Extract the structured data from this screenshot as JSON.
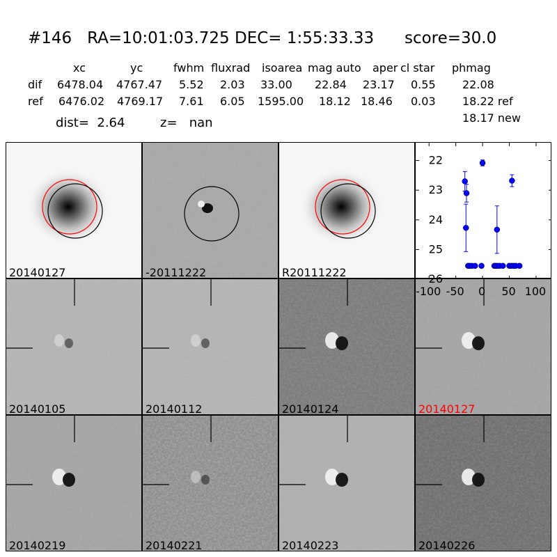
{
  "header": {
    "title": "#146   RA=10:01:03.725 DEC= 1:55:33.33      score=30.0",
    "columns": [
      "xc",
      "yc",
      "fwhm",
      "fluxrad",
      "isoarea",
      "mag auto",
      "aper",
      "cl star",
      "phmag"
    ],
    "rows": [
      {
        "label": "dif",
        "values": [
          "6478.04",
          "4767.47",
          "5.52",
          "2.03",
          "33.00",
          "22.84",
          "23.17",
          "0.55",
          "22.08"
        ]
      },
      {
        "label": "ref",
        "values": [
          "6476.02",
          "4769.17",
          "7.61",
          "6.05",
          "1595.00",
          "18.12",
          "18.46",
          "0.03",
          "18.22 ref"
        ]
      }
    ],
    "extra_phmag": "18.17 new",
    "dist": "dist=  2.64",
    "z": "z=   nan"
  },
  "panels": [
    {
      "label": "20140127",
      "kind": "galaxy",
      "label_color": "#000000"
    },
    {
      "label": "-20111222",
      "kind": "diff",
      "label_color": "#000000"
    },
    {
      "label": "R20111222",
      "kind": "galaxy",
      "label_color": "#000000"
    },
    {
      "label": "20140105",
      "kind": "noise",
      "label_color": "#000000"
    },
    {
      "label": "20140112",
      "kind": "noise",
      "label_color": "#000000"
    },
    {
      "label": "20140124",
      "kind": "dipole",
      "label_color": "#000000"
    },
    {
      "label": "20140127",
      "kind": "source",
      "label_color": "#ff0000"
    },
    {
      "label": "20140219",
      "kind": "source",
      "label_color": "#000000"
    },
    {
      "label": "20140221",
      "kind": "noise",
      "label_color": "#000000"
    },
    {
      "label": "20140223",
      "kind": "source",
      "label_color": "#000000"
    },
    {
      "label": "20140226",
      "kind": "source",
      "label_color": "#000000"
    }
  ],
  "chart_data": {
    "type": "scatter",
    "xlim": [
      -125,
      130
    ],
    "ylim": [
      26,
      21.4
    ],
    "y_inverted": true,
    "xticks": [
      "-100",
      "-50",
      "0",
      "50",
      "100"
    ],
    "yticks": [
      "22",
      "23",
      "24",
      "25",
      "26"
    ],
    "color": "#0000ff",
    "points": [
      {
        "x": -33,
        "y": 22.7,
        "err": 0.33
      },
      {
        "x": -30,
        "y": 23.1,
        "err": 0.3
      },
      {
        "x": -31,
        "y": 24.27,
        "err": 0.8
      },
      {
        "x": 0,
        "y": 22.08,
        "err": 0.1
      },
      {
        "x": 27,
        "y": 24.33,
        "err": 0.8
      },
      {
        "x": 55,
        "y": 22.68,
        "err": 0.2
      },
      {
        "x": -27,
        "y": 25.55,
        "err": 0.05
      },
      {
        "x": -24,
        "y": 25.55,
        "err": 0.05
      },
      {
        "x": -20,
        "y": 25.55,
        "err": 0.05
      },
      {
        "x": -14,
        "y": 25.55,
        "err": 0.05
      },
      {
        "x": -2,
        "y": 25.55,
        "err": 0.05
      },
      {
        "x": 22,
        "y": 25.55,
        "err": 0.05
      },
      {
        "x": 25,
        "y": 25.55,
        "err": 0.05
      },
      {
        "x": 28,
        "y": 25.55,
        "err": 0.05
      },
      {
        "x": 32,
        "y": 25.55,
        "err": 0.05
      },
      {
        "x": 38,
        "y": 25.55,
        "err": 0.05
      },
      {
        "x": 50,
        "y": 25.55,
        "err": 0.05
      },
      {
        "x": 54,
        "y": 25.55,
        "err": 0.05
      },
      {
        "x": 58,
        "y": 25.55,
        "err": 0.05
      },
      {
        "x": 62,
        "y": 25.55,
        "err": 0.05
      },
      {
        "x": 69,
        "y": 25.55,
        "err": 0.05
      }
    ]
  }
}
